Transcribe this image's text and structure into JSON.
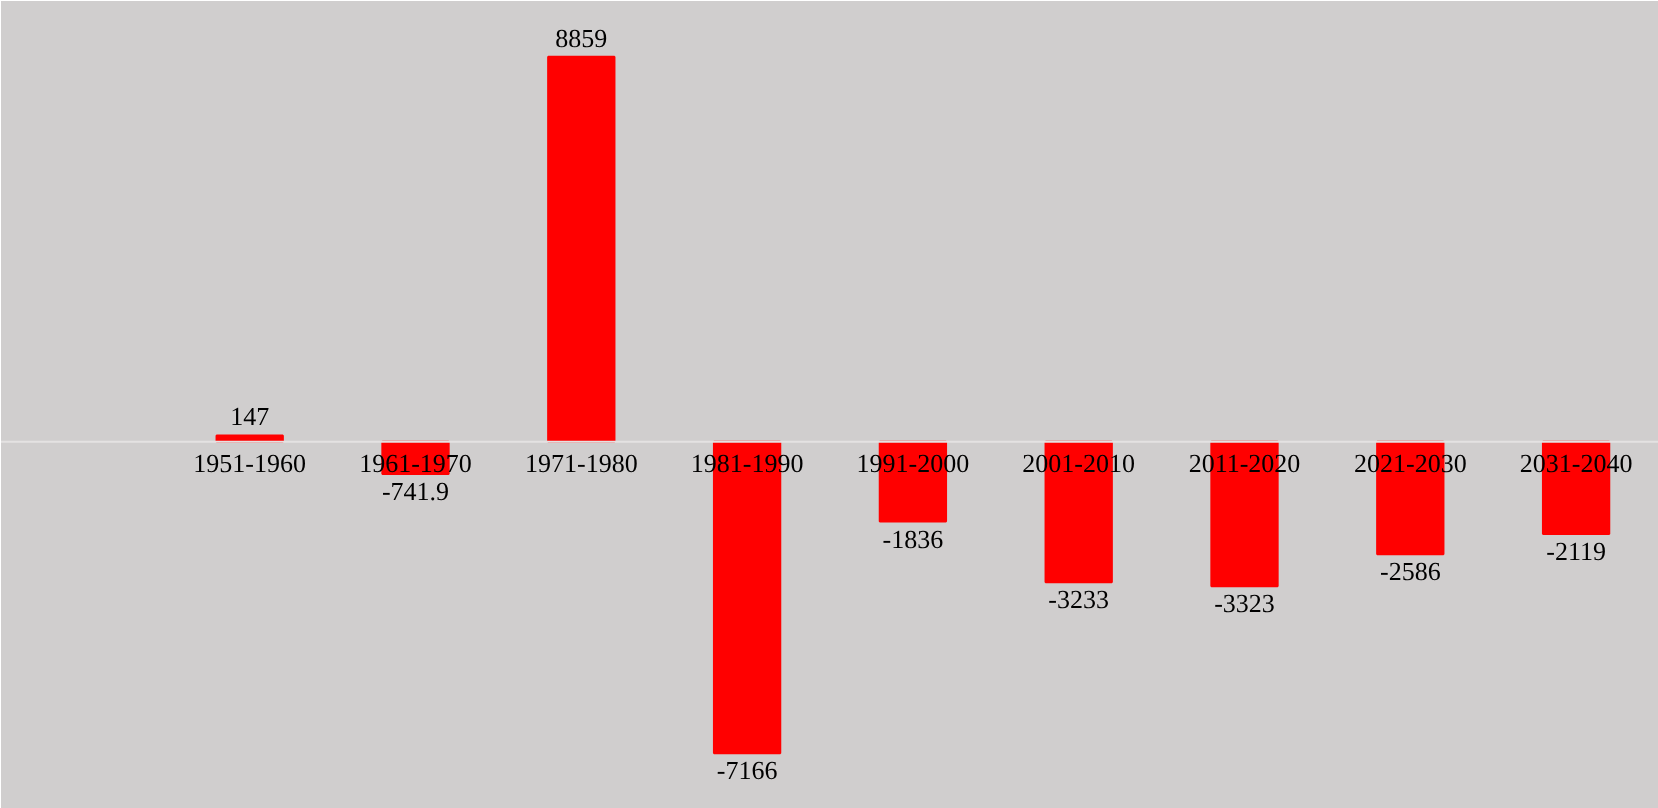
{
  "chart_data": {
    "type": "bar",
    "categories": [
      null,
      "1951-1960",
      "1961-1970",
      "1971-1980",
      "1981-1990",
      "1991-2000",
      "2001-2010",
      "2011-2020",
      "2021-2030",
      "2031-2040"
    ],
    "values": [
      null,
      147,
      -741.9,
      8859,
      -7166,
      -1836,
      -3233,
      -3323,
      -2586,
      -2119
    ],
    "color": "#ff0000",
    "data_labels": true,
    "grid": false
  }
}
